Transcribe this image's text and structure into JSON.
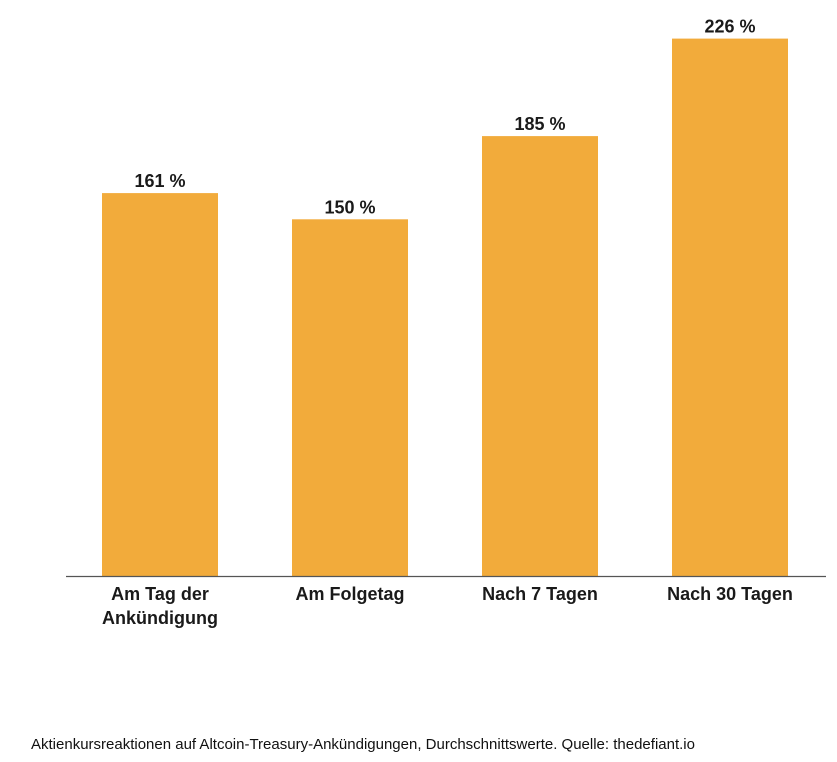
{
  "chart_data": {
    "type": "bar",
    "categories": [
      [
        "Am Tag der",
        "Ankündigung"
      ],
      [
        "Am Folgetag"
      ],
      [
        "Nach 7 Tagen"
      ],
      [
        "Nach 30 Tagen"
      ]
    ],
    "values": [
      161,
      150,
      185,
      226
    ],
    "value_labels": [
      "161 %",
      "150 %",
      "185 %",
      "226 %"
    ],
    "ylim": [
      0,
      230
    ],
    "grid": false,
    "legend": "none",
    "colors": {
      "bar": "#F2AB3B",
      "axis": "#555555",
      "text": "#1a1a1a"
    }
  },
  "caption": "Aktienkursreaktionen auf Altcoin-Treasury-Ankündigungen, Durchschnittswerte. Quelle: thedefiant.io"
}
